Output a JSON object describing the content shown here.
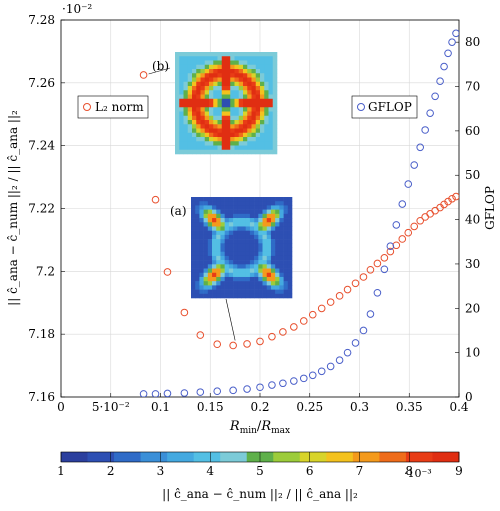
{
  "chart_data": {
    "type": "scatter",
    "xlabel": "R_min/R_max",
    "ylabel_left": "|| ĉ_ana − ĉ_num ||₂ / || ĉ_ana ||₂",
    "ylabel_right": "GFLOP",
    "xlim": [
      0,
      0.4
    ],
    "ylim_left": [
      7.16,
      7.28
    ],
    "ylim_right": [
      0,
      85
    ],
    "left_exponent_label": "·10⁻²",
    "x_ticks": [
      "0",
      "5·10⁻²",
      "0.1",
      "0.15",
      "0.2",
      "0.25",
      "0.3",
      "0.35",
      "0.4"
    ],
    "x_tick_values": [
      0,
      0.05,
      0.1,
      0.15,
      0.2,
      0.25,
      0.3,
      0.35,
      0.4
    ],
    "y_left_ticks": [
      "7.16",
      "7.18",
      "7.2",
      "7.22",
      "7.24",
      "7.26",
      "7.28"
    ],
    "y_left_tick_values": [
      7.16,
      7.18,
      7.2,
      7.22,
      7.24,
      7.26,
      7.28
    ],
    "y_right_ticks": [
      "0",
      "10",
      "20",
      "30",
      "40",
      "50",
      "60",
      "70",
      "80"
    ],
    "y_right_tick_values": [
      0,
      10,
      20,
      30,
      40,
      50,
      60,
      70,
      80
    ],
    "grid": true,
    "series": [
      {
        "name": "L₂ norm",
        "axis": "left",
        "color": "#e8502e",
        "points": [
          [
            0.083,
            7.2625
          ],
          [
            0.095,
            7.2228
          ],
          [
            0.107,
            7.1998
          ],
          [
            0.124,
            7.1869
          ],
          [
            0.14,
            7.1797
          ],
          [
            0.157,
            7.1768
          ],
          [
            0.173,
            7.1764
          ],
          [
            0.187,
            7.1769
          ],
          [
            0.2,
            7.1777
          ],
          [
            0.212,
            7.1792
          ],
          [
            0.223,
            7.1807
          ],
          [
            0.234,
            7.1823
          ],
          [
            0.244,
            7.1842
          ],
          [
            0.253,
            7.1862
          ],
          [
            0.262,
            7.1882
          ],
          [
            0.271,
            7.1902
          ],
          [
            0.28,
            7.1922
          ],
          [
            0.288,
            7.1942
          ],
          [
            0.296,
            7.1962
          ],
          [
            0.304,
            7.1982
          ],
          [
            0.311,
            7.2005
          ],
          [
            0.318,
            7.2025
          ],
          [
            0.325,
            7.2043
          ],
          [
            0.331,
            7.2063
          ],
          [
            0.337,
            7.2083
          ],
          [
            0.343,
            7.2103
          ],
          [
            0.349,
            7.2123
          ],
          [
            0.355,
            7.2143
          ],
          [
            0.361,
            7.2161
          ],
          [
            0.366,
            7.2173
          ],
          [
            0.371,
            7.2183
          ],
          [
            0.376,
            7.2193
          ],
          [
            0.381,
            7.2203
          ],
          [
            0.385,
            7.2213
          ],
          [
            0.389,
            7.2222
          ],
          [
            0.393,
            7.2231
          ],
          [
            0.397,
            7.2238
          ]
        ]
      },
      {
        "name": "GFLOP",
        "axis": "right",
        "color": "#4a5fc9",
        "points": [
          [
            0.083,
            0.7
          ],
          [
            0.095,
            0.7
          ],
          [
            0.107,
            0.8
          ],
          [
            0.124,
            0.9
          ],
          [
            0.14,
            1.1
          ],
          [
            0.157,
            1.3
          ],
          [
            0.173,
            1.5
          ],
          [
            0.187,
            1.8
          ],
          [
            0.2,
            2.2
          ],
          [
            0.212,
            2.7
          ],
          [
            0.223,
            3.1
          ],
          [
            0.234,
            3.6
          ],
          [
            0.244,
            4.2
          ],
          [
            0.253,
            4.9
          ],
          [
            0.262,
            5.8
          ],
          [
            0.271,
            6.9
          ],
          [
            0.28,
            8.3
          ],
          [
            0.288,
            10.0
          ],
          [
            0.296,
            12.2
          ],
          [
            0.304,
            15.0
          ],
          [
            0.311,
            18.7
          ],
          [
            0.318,
            23.5
          ],
          [
            0.325,
            28.8
          ],
          [
            0.331,
            34.0
          ],
          [
            0.337,
            38.8
          ],
          [
            0.343,
            43.5
          ],
          [
            0.349,
            48.0
          ],
          [
            0.355,
            52.3
          ],
          [
            0.361,
            56.3
          ],
          [
            0.366,
            60.2
          ],
          [
            0.371,
            64.0
          ],
          [
            0.376,
            67.8
          ],
          [
            0.381,
            71.2
          ],
          [
            0.385,
            74.5
          ],
          [
            0.389,
            77.5
          ],
          [
            0.393,
            80.0
          ],
          [
            0.397,
            82.0
          ]
        ]
      }
    ],
    "legend": {
      "left_label": "L₂ norm",
      "right_label": "GFLOP"
    },
    "annotations": [
      {
        "label": "(b)",
        "target": [
          0.083,
          7.2625
        ],
        "target_axis": "left"
      },
      {
        "label": "(a)",
        "target": [
          0.173,
          7.1764
        ],
        "target_axis": "left"
      }
    ],
    "colorbar": {
      "min": 1,
      "max": 9,
      "tick_values": [
        1,
        2,
        3,
        4,
        5,
        6,
        7,
        8,
        9
      ],
      "tick_labels": [
        "1",
        "2",
        "3",
        "4",
        "5",
        "6",
        "7",
        "8",
        "9"
      ],
      "colors": [
        "#2b3f9e",
        "#2d4fb3",
        "#2f6bc7",
        "#3a8fd8",
        "#44a9e0",
        "#53bfe4",
        "#7ccbd8",
        "#5fb04a",
        "#9ccc3a",
        "#d8d42a",
        "#f4c21e",
        "#f49a1c",
        "#ef6c1a",
        "#e83c16",
        "#e02e12"
      ],
      "label": "|| ĉ_ana − ĉ_num ||₂ / || ĉ_ana ||₂",
      "exponent_label": "·10⁻³"
    }
  }
}
